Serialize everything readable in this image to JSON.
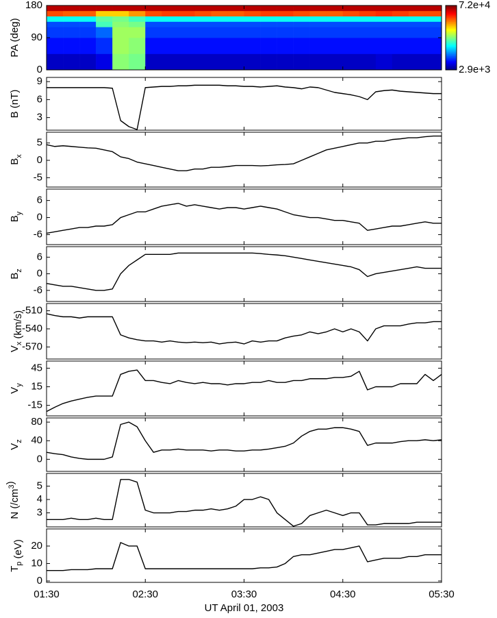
{
  "chart_data": [
    {
      "type": "heatmap",
      "ylabel": "PA (deg)",
      "xlim": [
        90,
        330
      ],
      "xticks": [
        90,
        150,
        210,
        270,
        330
      ],
      "ylim": [
        0,
        180
      ],
      "yticks": [
        0,
        90,
        180
      ],
      "x_edges": [
        90,
        100,
        110,
        120,
        130,
        140,
        150,
        160,
        170,
        180,
        190,
        200,
        210,
        220,
        230,
        240,
        250,
        260,
        270,
        280,
        290,
        300,
        310,
        320,
        330
      ],
      "y_edges": [
        0,
        45,
        90,
        120,
        135,
        150,
        165,
        180
      ],
      "z": [
        [
          3600,
          3600,
          3600,
          4000,
          15000,
          14000,
          3600,
          3600,
          3600,
          3600,
          3600,
          3600,
          3600,
          3600,
          3600,
          3600,
          3600,
          3600,
          3600,
          3600,
          3800,
          3600,
          3600,
          3600
        ],
        [
          4500,
          4500,
          4500,
          5000,
          16000,
          15000,
          4500,
          4500,
          4500,
          4500,
          4500,
          4500,
          4500,
          4500,
          4500,
          4500,
          4500,
          4500,
          4500,
          4500,
          4500,
          4500,
          4500,
          4500
        ],
        [
          5200,
          5200,
          5200,
          6000,
          16000,
          16000,
          5200,
          5200,
          5200,
          5200,
          5200,
          5200,
          5200,
          5200,
          5200,
          5200,
          5200,
          5200,
          5200,
          5200,
          5200,
          5200,
          5200,
          5200
        ],
        [
          5500,
          5500,
          5500,
          12000,
          15000,
          14000,
          5500,
          5500,
          5500,
          5500,
          5500,
          5500,
          5500,
          5500,
          5500,
          5500,
          5500,
          5500,
          5500,
          5500,
          5500,
          5500,
          5500,
          5500
        ],
        [
          10000,
          10000,
          10000,
          13000,
          14000,
          12000,
          10000,
          10000,
          10000,
          10000,
          10000,
          10000,
          10000,
          10000,
          10000,
          10000,
          10000,
          10000,
          10000,
          10000,
          10000,
          10000,
          10000,
          10000
        ],
        [
          38000,
          36000,
          36000,
          25000,
          25000,
          30000,
          38000,
          40000,
          40000,
          38000,
          36000,
          36000,
          38000,
          40000,
          40000,
          38000,
          36000,
          36000,
          38000,
          40000,
          42000,
          40000,
          38000,
          38000
        ],
        [
          60000,
          60000,
          60000,
          60000,
          60000,
          60000,
          60000,
          60000,
          60000,
          60000,
          60000,
          60000,
          60000,
          60000,
          60000,
          60000,
          60000,
          60000,
          60000,
          60000,
          60000,
          60000,
          60000,
          60000
        ]
      ],
      "colormap": "jet",
      "zscale": "log",
      "zlim": [
        2900,
        72000
      ],
      "zticks": [
        {
          "value": 72000,
          "label": "7.2e+4"
        },
        {
          "value": 2900,
          "label": "2.9e+3"
        }
      ]
    },
    {
      "type": "line",
      "ylabel": "B (nT)",
      "color": "#000000",
      "xlim": [
        90,
        330
      ],
      "xticks": [
        90,
        150,
        210,
        270,
        330
      ],
      "ylim": [
        0.9,
        9.7
      ],
      "yticks": [
        3,
        6,
        9
      ],
      "x": [
        90,
        95,
        100,
        105,
        110,
        115,
        120,
        125,
        130,
        135,
        140,
        145,
        150,
        155,
        160,
        165,
        170,
        175,
        180,
        185,
        190,
        195,
        200,
        205,
        210,
        215,
        220,
        225,
        230,
        235,
        240,
        245,
        250,
        255,
        260,
        265,
        270,
        275,
        280,
        285,
        290,
        295,
        300,
        305,
        310,
        315,
        320,
        325,
        330
      ],
      "values": [
        8.0,
        8.0,
        8.0,
        8.0,
        8.0,
        8.0,
        8.0,
        8.0,
        7.9,
        2.5,
        1.5,
        1.0,
        8.0,
        8.1,
        8.2,
        8.2,
        8.3,
        8.3,
        8.4,
        8.4,
        8.4,
        8.4,
        8.3,
        8.3,
        8.2,
        8.2,
        8.1,
        8.2,
        8.3,
        8.1,
        8.0,
        7.8,
        8.1,
        8.0,
        7.6,
        7.2,
        7.0,
        6.8,
        6.5,
        6.0,
        7.3,
        7.5,
        7.6,
        7.4,
        7.3,
        7.2,
        7.1,
        7.0,
        7.0
      ]
    },
    {
      "type": "line",
      "ylabel": [
        "B",
        {
          "sub": "x"
        }
      ],
      "color": "#000000",
      "xlim": [
        90,
        330
      ],
      "xticks": [
        90,
        150,
        210,
        270,
        330
      ],
      "ylim": [
        -7.7,
        8.1
      ],
      "yticks": [
        5,
        0,
        -5
      ],
      "x": [
        90,
        95,
        100,
        105,
        110,
        115,
        120,
        125,
        130,
        135,
        140,
        145,
        150,
        155,
        160,
        165,
        170,
        175,
        180,
        185,
        190,
        195,
        200,
        205,
        210,
        215,
        220,
        225,
        230,
        235,
        240,
        245,
        250,
        255,
        260,
        265,
        270,
        275,
        280,
        285,
        290,
        295,
        300,
        305,
        310,
        315,
        320,
        325,
        330
      ],
      "values": [
        4.5,
        4.0,
        4.2,
        4.0,
        3.8,
        3.6,
        3.5,
        3.0,
        2.5,
        1.0,
        0.5,
        -0.5,
        -1,
        -1.5,
        -2,
        -2.5,
        -3,
        -3,
        -2.5,
        -2.5,
        -2,
        -2,
        -1.8,
        -1.5,
        -1.5,
        -1.5,
        -1.6,
        -1.5,
        -1.3,
        -1.2,
        -1.0,
        0,
        1.0,
        2.0,
        3.0,
        3.5,
        4.0,
        4.5,
        5.0,
        5.0,
        5.5,
        5.5,
        6.0,
        6.2,
        6.5,
        6.5,
        6.8,
        7.0,
        7.0
      ]
    },
    {
      "type": "line",
      "ylabel": [
        "B",
        {
          "sub": "y"
        }
      ],
      "color": "#000000",
      "xlim": [
        90,
        330
      ],
      "xticks": [
        90,
        150,
        210,
        270,
        330
      ],
      "ylim": [
        -9.5,
        10
      ],
      "yticks": [
        6,
        0,
        -6
      ],
      "x": [
        90,
        95,
        100,
        105,
        110,
        115,
        120,
        125,
        130,
        135,
        140,
        145,
        150,
        155,
        160,
        165,
        170,
        175,
        180,
        185,
        190,
        195,
        200,
        205,
        210,
        215,
        220,
        225,
        230,
        235,
        240,
        245,
        250,
        255,
        260,
        265,
        270,
        275,
        280,
        285,
        290,
        295,
        300,
        305,
        310,
        315,
        320,
        325,
        330
      ],
      "values": [
        -5.5,
        -5,
        -4.5,
        -4,
        -3.5,
        -3.5,
        -3,
        -3,
        -2.5,
        0,
        1,
        2,
        2,
        3,
        4,
        4.5,
        5,
        4,
        4.5,
        4,
        3.5,
        3,
        3.5,
        3.5,
        3,
        3.5,
        4,
        3.5,
        3,
        2,
        1,
        0.5,
        0,
        0,
        -0.5,
        -1,
        -1,
        -1.5,
        -2,
        -4.5,
        -4,
        -3.5,
        -3,
        -3,
        -2.5,
        -2,
        -1.5,
        -2,
        -2
      ]
    },
    {
      "type": "line",
      "ylabel": [
        "B",
        {
          "sub": "z"
        }
      ],
      "color": "#000000",
      "xlim": [
        90,
        330
      ],
      "xticks": [
        90,
        150,
        210,
        270,
        330
      ],
      "ylim": [
        -10,
        9.8
      ],
      "yticks": [
        6,
        0,
        -6
      ],
      "x": [
        90,
        95,
        100,
        105,
        110,
        115,
        120,
        125,
        130,
        135,
        140,
        145,
        150,
        155,
        160,
        165,
        170,
        175,
        180,
        185,
        190,
        195,
        200,
        205,
        210,
        215,
        220,
        225,
        230,
        235,
        240,
        245,
        250,
        255,
        260,
        265,
        270,
        275,
        280,
        285,
        290,
        295,
        300,
        305,
        310,
        315,
        320,
        325,
        330
      ],
      "values": [
        -3.5,
        -4,
        -4.5,
        -4.5,
        -5,
        -5.5,
        -6,
        -6,
        -5.5,
        0,
        3,
        5,
        7,
        7,
        7,
        7,
        7.5,
        7.5,
        7.5,
        7.5,
        7.5,
        7.5,
        7.5,
        7.5,
        7.5,
        7.5,
        7.3,
        7.0,
        6.8,
        6.5,
        6.0,
        5.5,
        5.0,
        4.5,
        4.0,
        3.5,
        3.0,
        2.5,
        1.5,
        -1,
        0,
        0.5,
        1,
        1.5,
        2,
        2.5,
        2,
        2,
        2
      ]
    },
    {
      "type": "line",
      "ylabel": [
        "V",
        {
          "sub": "x"
        },
        " (km/s)"
      ],
      "color": "#000000",
      "xlim": [
        90,
        330
      ],
      "xticks": [
        90,
        150,
        210,
        270,
        330
      ],
      "ylim": [
        -590,
        -498
      ],
      "yticks": [
        -510,
        -540,
        -570
      ],
      "x": [
        90,
        95,
        100,
        105,
        110,
        115,
        120,
        125,
        130,
        135,
        140,
        145,
        150,
        155,
        160,
        165,
        170,
        175,
        180,
        185,
        190,
        195,
        200,
        205,
        210,
        215,
        220,
        225,
        230,
        235,
        240,
        245,
        250,
        255,
        260,
        265,
        270,
        275,
        280,
        285,
        290,
        295,
        300,
        305,
        310,
        315,
        320,
        325,
        330
      ],
      "values": [
        -515,
        -518,
        -520,
        -520,
        -522,
        -520,
        -520,
        -520,
        -520,
        -550,
        -555,
        -558,
        -560,
        -560,
        -562,
        -560,
        -562,
        -563,
        -562,
        -563,
        -562,
        -565,
        -563,
        -562,
        -565,
        -560,
        -562,
        -560,
        -560,
        -555,
        -552,
        -550,
        -545,
        -548,
        -545,
        -540,
        -545,
        -540,
        -545,
        -560,
        -540,
        -535,
        -535,
        -535,
        -532,
        -530,
        -530,
        -528,
        -528
      ]
    },
    {
      "type": "line",
      "ylabel": [
        "V",
        {
          "sub": "y"
        }
      ],
      "color": "#000000",
      "xlim": [
        90,
        330
      ],
      "xticks": [
        90,
        150,
        210,
        270,
        330
      ],
      "ylim": [
        -32,
        56.5
      ],
      "yticks": [
        45,
        15,
        -15
      ],
      "x": [
        90,
        95,
        100,
        105,
        110,
        115,
        120,
        125,
        130,
        135,
        140,
        145,
        150,
        155,
        160,
        165,
        170,
        175,
        180,
        185,
        190,
        195,
        200,
        205,
        210,
        215,
        220,
        225,
        230,
        235,
        240,
        245,
        250,
        255,
        260,
        265,
        270,
        275,
        280,
        285,
        290,
        295,
        300,
        305,
        310,
        315,
        320,
        325,
        330
      ],
      "values": [
        -25,
        -18,
        -12,
        -8,
        -5,
        -2,
        0,
        0,
        0,
        35,
        40,
        42,
        25,
        25,
        22,
        20,
        25,
        22,
        20,
        22,
        20,
        20,
        18,
        20,
        20,
        22,
        22,
        25,
        22,
        22,
        25,
        25,
        28,
        28,
        28,
        30,
        30,
        32,
        40,
        10,
        15,
        15,
        15,
        20,
        20,
        20,
        35,
        25,
        35
      ]
    },
    {
      "type": "line",
      "ylabel": [
        "V",
        {
          "sub": "z"
        }
      ],
      "color": "#000000",
      "xlim": [
        90,
        330
      ],
      "xticks": [
        90,
        150,
        210,
        270,
        330
      ],
      "ylim": [
        -26,
        89
      ],
      "yticks": [
        80,
        40,
        0
      ],
      "x": [
        90,
        95,
        100,
        105,
        110,
        115,
        120,
        125,
        130,
        135,
        140,
        145,
        150,
        155,
        160,
        165,
        170,
        175,
        180,
        185,
        190,
        195,
        200,
        205,
        210,
        215,
        220,
        225,
        230,
        235,
        240,
        245,
        250,
        255,
        260,
        265,
        270,
        275,
        280,
        285,
        290,
        295,
        300,
        305,
        310,
        315,
        320,
        325,
        330
      ],
      "values": [
        15,
        12,
        10,
        5,
        2,
        0,
        0,
        0,
        5,
        75,
        80,
        70,
        40,
        15,
        20,
        20,
        22,
        20,
        20,
        20,
        18,
        20,
        20,
        18,
        18,
        20,
        20,
        22,
        25,
        28,
        35,
        50,
        60,
        65,
        65,
        68,
        68,
        65,
        60,
        30,
        35,
        35,
        35,
        38,
        40,
        40,
        42,
        40,
        42
      ]
    },
    {
      "type": "line",
      "ylabel": [
        "N (/cm",
        {
          "sup": "3"
        },
        ")"
      ],
      "color": "#000000",
      "xlim": [
        90,
        330
      ],
      "xticks": [
        90,
        150,
        210,
        270,
        330
      ],
      "ylim": [
        1.95,
        5.95
      ],
      "yticks": [
        5,
        4,
        3
      ],
      "x": [
        90,
        95,
        100,
        105,
        110,
        115,
        120,
        125,
        130,
        135,
        140,
        145,
        150,
        155,
        160,
        165,
        170,
        175,
        180,
        185,
        190,
        195,
        200,
        205,
        210,
        215,
        220,
        225,
        230,
        235,
        240,
        245,
        250,
        255,
        260,
        265,
        270,
        275,
        280,
        285,
        290,
        295,
        300,
        305,
        310,
        315,
        320,
        325,
        330
      ],
      "values": [
        2.5,
        2.5,
        2.5,
        2.6,
        2.5,
        2.5,
        2.6,
        2.5,
        2.5,
        5.5,
        5.5,
        5.3,
        3.2,
        3.0,
        3.0,
        3.0,
        3.1,
        3.1,
        3.2,
        3.2,
        3.3,
        3.2,
        3.3,
        3.5,
        4.0,
        4.0,
        4.2,
        4.0,
        3.0,
        2.5,
        2.0,
        2.2,
        2.8,
        3.0,
        3.2,
        3.0,
        2.8,
        3.0,
        3.0,
        2.1,
        2.1,
        2.2,
        2.2,
        2.2,
        2.2,
        2.3,
        2.3,
        2.3,
        2.3
      ]
    },
    {
      "type": "line",
      "ylabel": [
        "T",
        {
          "sub": "p"
        },
        " (eV)"
      ],
      "color": "#000000",
      "xlim": [
        90,
        330
      ],
      "xlabel": "UT April 01, 2003",
      "xticks": [
        {
          "value": 90,
          "label": "01:30"
        },
        {
          "value": 150,
          "label": "02:30"
        },
        {
          "value": 210,
          "label": "03:30"
        },
        {
          "value": 270,
          "label": "04:30"
        },
        {
          "value": 330,
          "label": "05:30"
        }
      ],
      "ylim": [
        -0.8,
        29.8
      ],
      "yticks": [
        20,
        10,
        0
      ],
      "x": [
        90,
        95,
        100,
        105,
        110,
        115,
        120,
        125,
        130,
        135,
        140,
        145,
        150,
        155,
        160,
        165,
        170,
        175,
        180,
        185,
        190,
        195,
        200,
        205,
        210,
        215,
        220,
        225,
        230,
        235,
        240,
        245,
        250,
        255,
        260,
        265,
        270,
        275,
        280,
        285,
        290,
        295,
        300,
        305,
        310,
        315,
        320,
        325,
        330
      ],
      "values": [
        6,
        6,
        6,
        6.5,
        6.5,
        6.5,
        7,
        7,
        7,
        22,
        20,
        20,
        7,
        7,
        7,
        7,
        7,
        7,
        7,
        7,
        7,
        7,
        7,
        7,
        7,
        7,
        7.5,
        7.5,
        8,
        10,
        14,
        15,
        15,
        16,
        17,
        18,
        18,
        19,
        20,
        11,
        12,
        13,
        13,
        13,
        14,
        14,
        15,
        15,
        15
      ]
    }
  ]
}
